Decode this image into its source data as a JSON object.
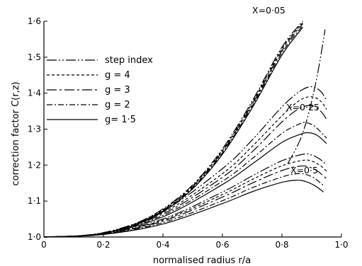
{
  "chart_data": {
    "type": "line",
    "xlabel": "normalised radius r/a",
    "ylabel": "correction factor C(r,z)",
    "xlim": [
      0,
      1.0
    ],
    "ylim": [
      1.0,
      1.6
    ],
    "xticks": [
      "0",
      "0·2",
      "0·4",
      "0·6",
      "0·8",
      "1·0"
    ],
    "yticks": [
      "1·0",
      "1·1",
      "1·2",
      "1·3",
      "1·4",
      "1·5",
      "1·6"
    ],
    "grid": false,
    "legend_position": "top-left",
    "series": [
      {
        "name": "step index",
        "dash": "14,3,2,3,2,3"
      },
      {
        "name": "g = 4",
        "dash": "4,3"
      },
      {
        "name": "g = 3",
        "dash": "14,4,3,4"
      },
      {
        "name": "g = 2",
        "dash": "8,3,2,3"
      },
      {
        "name": "g = 1·5",
        "dash": ""
      }
    ],
    "legend_labels": [
      "step index",
      "g = 4",
      "g = 3",
      "g = 2",
      "g= 1·5"
    ],
    "groups": [
      {
        "label": "X=0·05",
        "curves": [
          {
            "series": "step index",
            "x": [
              0,
              0.1,
              0.2,
              0.3,
              0.4,
              0.5,
              0.6,
              0.7,
              0.8,
              0.87
            ],
            "y": [
              1.0,
              1.002,
              1.012,
              1.035,
              1.078,
              1.145,
              1.245,
              1.378,
              1.528,
              1.6
            ]
          },
          {
            "series": "g = 4",
            "x": [
              0,
              0.1,
              0.2,
              0.3,
              0.4,
              0.5,
              0.6,
              0.7,
              0.8,
              0.87
            ],
            "y": [
              1.0,
              1.002,
              1.011,
              1.034,
              1.076,
              1.142,
              1.241,
              1.373,
              1.523,
              1.596
            ]
          },
          {
            "series": "g = 3",
            "x": [
              0,
              0.1,
              0.2,
              0.3,
              0.4,
              0.5,
              0.6,
              0.7,
              0.8,
              0.87
            ],
            "y": [
              1.0,
              1.002,
              1.011,
              1.033,
              1.074,
              1.14,
              1.238,
              1.369,
              1.518,
              1.593
            ]
          },
          {
            "series": "g = 2",
            "x": [
              0,
              0.1,
              0.2,
              0.3,
              0.4,
              0.5,
              0.6,
              0.7,
              0.8,
              0.87
            ],
            "y": [
              1.0,
              1.002,
              1.01,
              1.032,
              1.072,
              1.137,
              1.234,
              1.364,
              1.512,
              1.588
            ]
          },
          {
            "series": "g = 1·5",
            "x": [
              0,
              0.1,
              0.2,
              0.3,
              0.4,
              0.5,
              0.6,
              0.7,
              0.8,
              0.87
            ],
            "y": [
              1.0,
              1.002,
              1.01,
              1.031,
              1.07,
              1.134,
              1.23,
              1.359,
              1.506,
              1.583
            ]
          },
          {
            "series": "step index",
            "x": [
              0.82,
              0.86,
              0.89,
              0.92,
              0.945
            ],
            "y": [
              1.205,
              1.268,
              1.345,
              1.455,
              1.577
            ]
          }
        ]
      },
      {
        "label": "X=0·25",
        "curves": [
          {
            "series": "step index",
            "x": [
              0,
              0.2,
              0.4,
              0.6,
              0.7,
              0.8,
              0.86,
              0.9,
              0.93,
              0.95
            ],
            "y": [
              1.0,
              1.012,
              1.072,
              1.19,
              1.27,
              1.362,
              1.405,
              1.418,
              1.405,
              1.38
            ]
          },
          {
            "series": "g = 4",
            "x": [
              0,
              0.2,
              0.4,
              0.6,
              0.7,
              0.8,
              0.86,
              0.9,
              0.93,
              0.95
            ],
            "y": [
              1.0,
              1.011,
              1.068,
              1.176,
              1.252,
              1.337,
              1.38,
              1.39,
              1.378,
              1.355
            ]
          },
          {
            "series": "g = 3",
            "x": [
              0,
              0.2,
              0.4,
              0.6,
              0.7,
              0.8,
              0.86,
              0.9,
              0.93,
              0.95
            ],
            "y": [
              1.0,
              1.011,
              1.064,
              1.166,
              1.237,
              1.32,
              1.358,
              1.365,
              1.35,
              1.327
            ]
          },
          {
            "series": "g = 2",
            "x": [
              0,
              0.2,
              0.4,
              0.6,
              0.7,
              0.8,
              0.86,
              0.88,
              0.91,
              0.95
            ],
            "y": [
              1.0,
              1.01,
              1.06,
              1.155,
              1.218,
              1.288,
              1.315,
              1.318,
              1.308,
              1.275
            ]
          },
          {
            "series": "g = 1·5",
            "x": [
              0,
              0.2,
              0.4,
              0.6,
              0.7,
              0.8,
              0.86,
              0.89,
              0.92,
              0.95
            ],
            "y": [
              1.0,
              1.01,
              1.056,
              1.146,
              1.203,
              1.263,
              1.285,
              1.29,
              1.282,
              1.26
            ]
          }
        ]
      },
      {
        "label": "X=0·5",
        "curves": [
          {
            "series": "step index",
            "x": [
              0,
              0.2,
              0.4,
              0.6,
              0.7,
              0.8,
              0.87,
              0.9,
              0.93,
              0.95
            ],
            "y": [
              1.0,
              1.009,
              1.05,
              1.125,
              1.17,
              1.212,
              1.23,
              1.228,
              1.215,
              1.2
            ]
          },
          {
            "series": "g = 4",
            "x": [
              0,
              0.2,
              0.4,
              0.6,
              0.7,
              0.8,
              0.87,
              0.9,
              0.93,
              0.95
            ],
            "y": [
              1.0,
              1.008,
              1.047,
              1.118,
              1.16,
              1.198,
              1.213,
              1.211,
              1.198,
              1.183
            ]
          },
          {
            "series": "g = 3",
            "x": [
              0,
              0.2,
              0.4,
              0.6,
              0.7,
              0.8,
              0.86,
              0.89,
              0.92,
              0.95
            ],
            "y": [
              1.0,
              1.008,
              1.044,
              1.111,
              1.15,
              1.185,
              1.197,
              1.195,
              1.183,
              1.162
            ]
          },
          {
            "series": "g = 2",
            "x": [
              0,
              0.2,
              0.4,
              0.6,
              0.7,
              0.8,
              0.85,
              0.88,
              0.91,
              0.94
            ],
            "y": [
              1.0,
              1.007,
              1.04,
              1.101,
              1.137,
              1.167,
              1.176,
              1.174,
              1.163,
              1.143
            ]
          },
          {
            "series": "g = 1·5",
            "x": [
              0,
              0.2,
              0.4,
              0.6,
              0.7,
              0.8,
              0.85,
              0.88,
              0.91,
              0.94
            ],
            "y": [
              1.0,
              1.007,
              1.036,
              1.093,
              1.126,
              1.152,
              1.158,
              1.154,
              1.143,
              1.125
            ]
          }
        ]
      }
    ]
  }
}
